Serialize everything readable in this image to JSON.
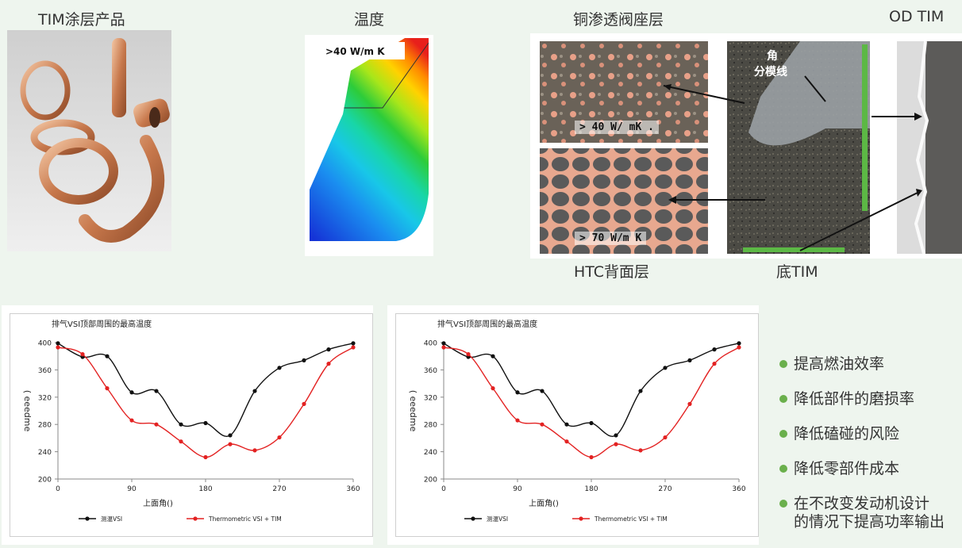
{
  "captions": {
    "tim_products": "TIM涂层产品",
    "temperature": "温度",
    "copper_layer": "铜渗透阀座层",
    "od_tim": "OD TIM",
    "htc_back": "HTC背面层",
    "bottom_tim": "底TIM"
  },
  "fea": {
    "label": ">40 W/m K"
  },
  "micrograph": {
    "top_label": "> 40 W/ mK .",
    "bottom_label": "> 70 W/m K",
    "corner_label_line1": "角",
    "corner_label_line2": "分模线"
  },
  "colors": {
    "black_series": "#111111",
    "red_series": "#e32222",
    "bullet_dot": "#6ab04c",
    "page_bg": "#eef5ee"
  },
  "chart_data": [
    {
      "type": "line",
      "title": "排气VSI顶部周围的最高温度",
      "xlabel": "上面角()",
      "ylabel": "( eeedme",
      "xlim": [
        0,
        360
      ],
      "ylim": [
        200,
        400
      ],
      "xticks": [
        "0",
        "90",
        "180",
        "270",
        "360"
      ],
      "yticks": [
        "200",
        "240",
        "280",
        "320",
        "360",
        "400"
      ],
      "legend_position": "bottom",
      "series": [
        {
          "name": "测温VSI",
          "color": "#111111",
          "x": [
            0,
            30,
            60,
            90,
            120,
            150,
            180,
            210,
            240,
            270,
            300,
            330,
            360
          ],
          "y": [
            399,
            379,
            380,
            327,
            329,
            280,
            282,
            264,
            329,
            363,
            374,
            390,
            399
          ]
        },
        {
          "name": "Thermometric VSI + TIM",
          "color": "#e32222",
          "x": [
            0,
            30,
            60,
            90,
            120,
            150,
            180,
            210,
            240,
            270,
            300,
            330,
            360
          ],
          "y": [
            393,
            383,
            333,
            286,
            280,
            255,
            232,
            251,
            242,
            261,
            310,
            369,
            393
          ]
        }
      ]
    },
    {
      "type": "line",
      "title": "排气VSI顶部周围的最高温度",
      "xlabel": "上面角()",
      "ylabel": "( eeedme",
      "xlim": [
        0,
        360
      ],
      "ylim": [
        200,
        400
      ],
      "xticks": [
        "0",
        "90",
        "180",
        "270",
        "360"
      ],
      "yticks": [
        "200",
        "240",
        "280",
        "320",
        "360",
        "400"
      ],
      "legend_position": "bottom",
      "series": [
        {
          "name": "测温VSI",
          "color": "#111111",
          "x": [
            0,
            30,
            60,
            90,
            120,
            150,
            180,
            210,
            240,
            270,
            300,
            330,
            360
          ],
          "y": [
            399,
            379,
            380,
            327,
            329,
            280,
            282,
            264,
            329,
            363,
            374,
            390,
            399
          ]
        },
        {
          "name": "Thermometric VSI + TIM",
          "color": "#e32222",
          "x": [
            0,
            30,
            60,
            90,
            120,
            150,
            180,
            210,
            240,
            270,
            300,
            330,
            360
          ],
          "y": [
            393,
            383,
            333,
            286,
            280,
            255,
            232,
            251,
            242,
            261,
            310,
            369,
            393
          ]
        }
      ]
    }
  ],
  "bullets": [
    {
      "text": "提高燃油效率"
    },
    {
      "text": "降低部件的磨损率"
    },
    {
      "text": "降低磕碰的风险"
    },
    {
      "text": "降低零部件成本"
    },
    {
      "text": "在不改变发动机设计",
      "text2": "的情况下提高功率输出"
    }
  ]
}
